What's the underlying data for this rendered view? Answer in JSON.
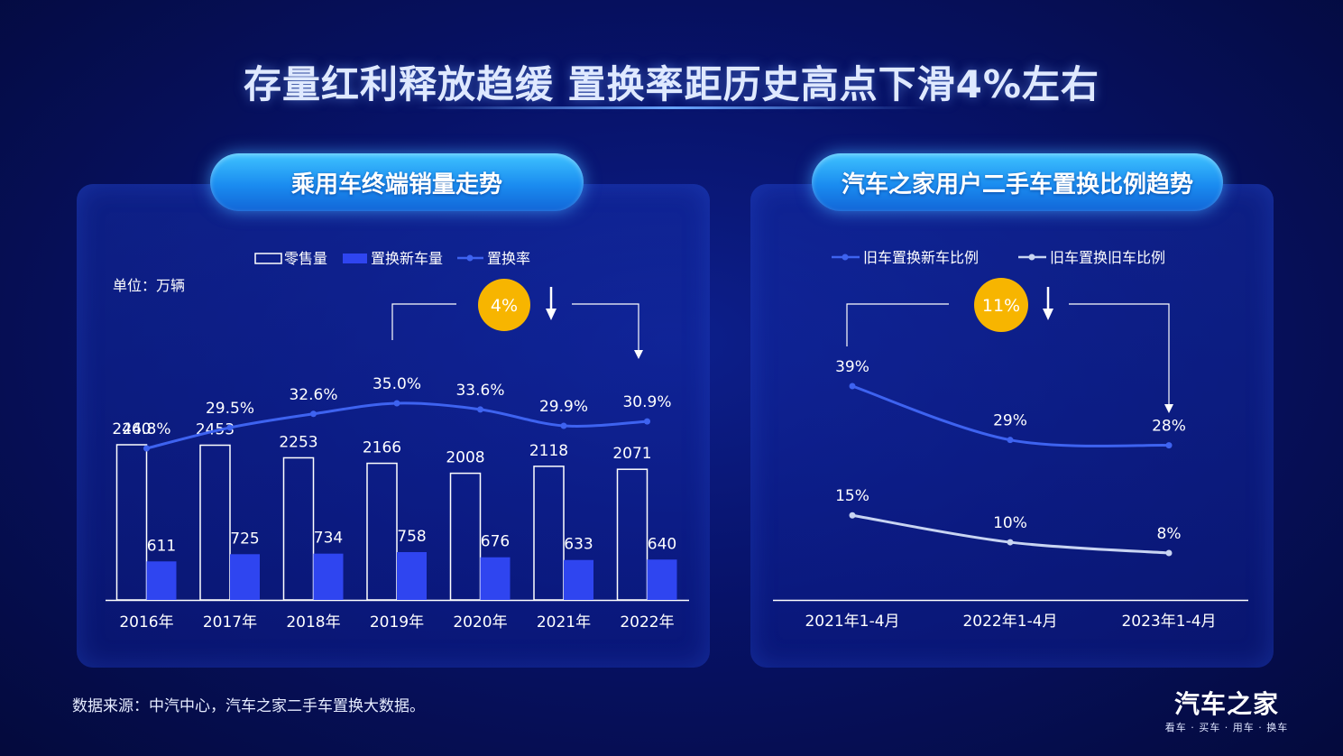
{
  "header": {
    "title": "存量红利释放趋缓  置换率距历史高点下滑4%左右"
  },
  "left_panel": {
    "pill_title": "乘用车终端销量走势",
    "unit": "单位：万辆",
    "badge": "4%",
    "legend": [
      "零售量",
      "置换新车量",
      "置换率"
    ]
  },
  "right_panel": {
    "pill_title": "汽车之家用户二手车置换比例趋势",
    "badge": "11%",
    "legend": [
      "旧车置换新车比例",
      "旧车置换旧车比例"
    ]
  },
  "footer": {
    "source": "数据来源：中汽中心，汽车之家二手车置换大数据。",
    "logo_main": "汽车之家",
    "logo_sub": "看车 · 买车 · 用车 · 换车"
  },
  "colors": {
    "new_bar": "#2f45f0",
    "rate_line": "#3e63f0",
    "light_line": "#c8d4f2",
    "badge": "#f7b500"
  },
  "chart_data": [
    {
      "type": "bar",
      "categories": [
        "2016年",
        "2017年",
        "2018年",
        "2019年",
        "2020年",
        "2021年",
        "2022年"
      ],
      "series": [
        {
          "name": "零售量",
          "values": [
            2460,
            2453,
            2253,
            2166,
            2008,
            2118,
            2071
          ]
        },
        {
          "name": "置换新车量",
          "values": [
            611,
            725,
            734,
            758,
            676,
            633,
            640
          ]
        },
        {
          "name": "置换率",
          "type": "line",
          "values": [
            24.8,
            29.5,
            32.6,
            35.0,
            33.6,
            29.9,
            30.9
          ],
          "labels": [
            "24.8%",
            "29.5%",
            "32.6%",
            "35.0%",
            "33.6%",
            "29.9%",
            "30.9%"
          ]
        }
      ],
      "ylim": [
        0,
        2500
      ],
      "legend": "top"
    },
    {
      "type": "line",
      "categories": [
        "2021年1-4月",
        "2022年1-4月",
        "2023年1-4月"
      ],
      "series": [
        {
          "name": "旧车置换新车比例",
          "values": [
            39,
            29,
            28
          ],
          "labels": [
            "39%",
            "29%",
            "28%"
          ]
        },
        {
          "name": "旧车置换旧车比例",
          "values": [
            15,
            10,
            8
          ],
          "labels": [
            "15%",
            "10%",
            "8%"
          ]
        }
      ],
      "legend": "top"
    }
  ]
}
